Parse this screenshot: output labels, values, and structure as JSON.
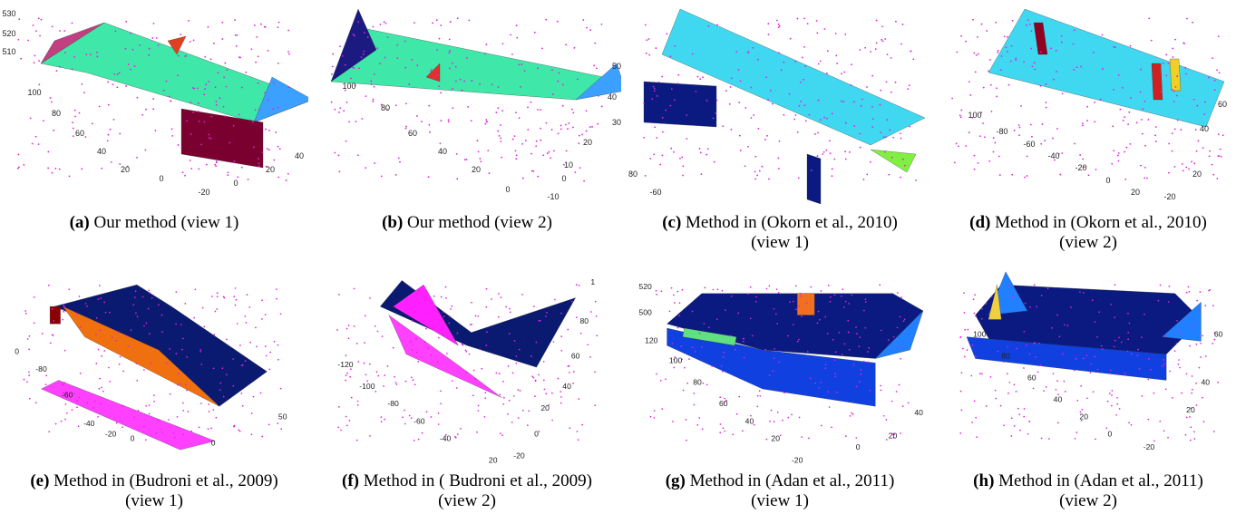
{
  "panels": [
    {
      "label": "(a)",
      "caption": "Our method (view 1)",
      "ticks": [
        "530",
        "520",
        "510",
        "100",
        "80",
        "60",
        "40",
        "20",
        "0",
        "-20",
        "0",
        "20",
        "40"
      ]
    },
    {
      "label": "(b)",
      "caption": "Our method (view 2)",
      "ticks": [
        "100",
        "80",
        "60",
        "40",
        "20",
        "0",
        "-10",
        "0",
        "10",
        "20",
        "30",
        "40",
        "50"
      ]
    },
    {
      "label": "(c)",
      "caption": "Method in (Okorn et al., 2010) (view 1)",
      "ticks": [
        "80",
        "-60"
      ]
    },
    {
      "label": "(d)",
      "caption": "Method in (Okorn et al., 2010) (view 2)",
      "ticks": [
        "100",
        "-80",
        "-60",
        "-40",
        "-20",
        "0",
        "20",
        "-20",
        "20",
        "40",
        "60"
      ]
    },
    {
      "label": "(e)",
      "caption": "Method in (Budroni et al., 2009) (view 1)",
      "ticks": [
        "0",
        "-80",
        "-60",
        "-40",
        "-20",
        "0",
        "0",
        "50"
      ]
    },
    {
      "label": "(f)",
      "caption": "Method in ( Budroni et al., 2009) (view 2)",
      "ticks": [
        "1",
        "80",
        "60",
        "40",
        "20",
        "0",
        "-120",
        "-100",
        "-80",
        "-60",
        "-40",
        "20",
        "-20"
      ]
    },
    {
      "label": "(g)",
      "caption": "Method in (Adan et al., 2011) (view 1)",
      "ticks": [
        "520",
        "500",
        "120",
        "100",
        "80",
        "60",
        "40",
        "20",
        "-20",
        "0",
        "20",
        "40"
      ]
    },
    {
      "label": "(h)",
      "caption": "Method in (Adan et al., 2011) (view 2)",
      "ticks": [
        "100",
        "80",
        "60",
        "40",
        "20",
        "0",
        "-20",
        "20",
        "40",
        "60"
      ]
    }
  ]
}
